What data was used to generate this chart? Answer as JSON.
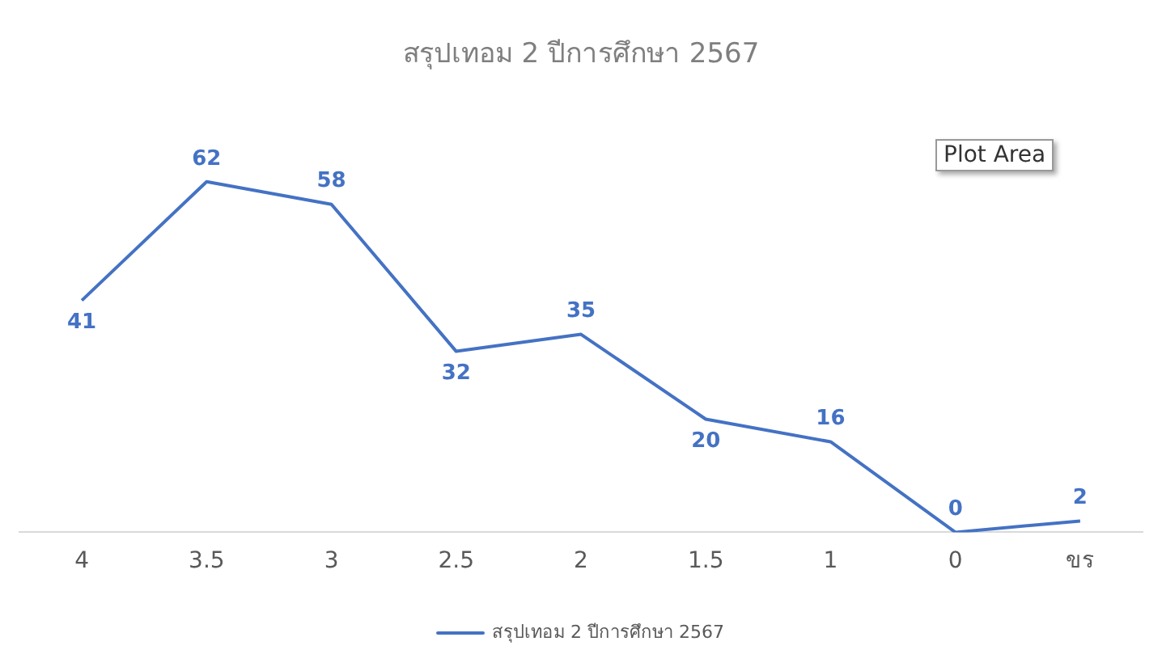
{
  "chart_data": {
    "type": "line",
    "title": "สรุปเทอม 2 ปีการศึกษา 2567",
    "categories": [
      "4",
      "3.5",
      "3",
      "2.5",
      "2",
      "1.5",
      "1",
      "0",
      "ขร"
    ],
    "series": [
      {
        "name": "สรุปเทอม 2 ปีการศึกษา 2567",
        "color": "#4472c4",
        "values": [
          41,
          62,
          58,
          32,
          35,
          20,
          16,
          0,
          2
        ]
      }
    ],
    "data_labels": true,
    "grid": false,
    "legend": "bottom",
    "marker": "none",
    "line_style": "solid",
    "annotations": [
      "Plot Area"
    ]
  }
}
